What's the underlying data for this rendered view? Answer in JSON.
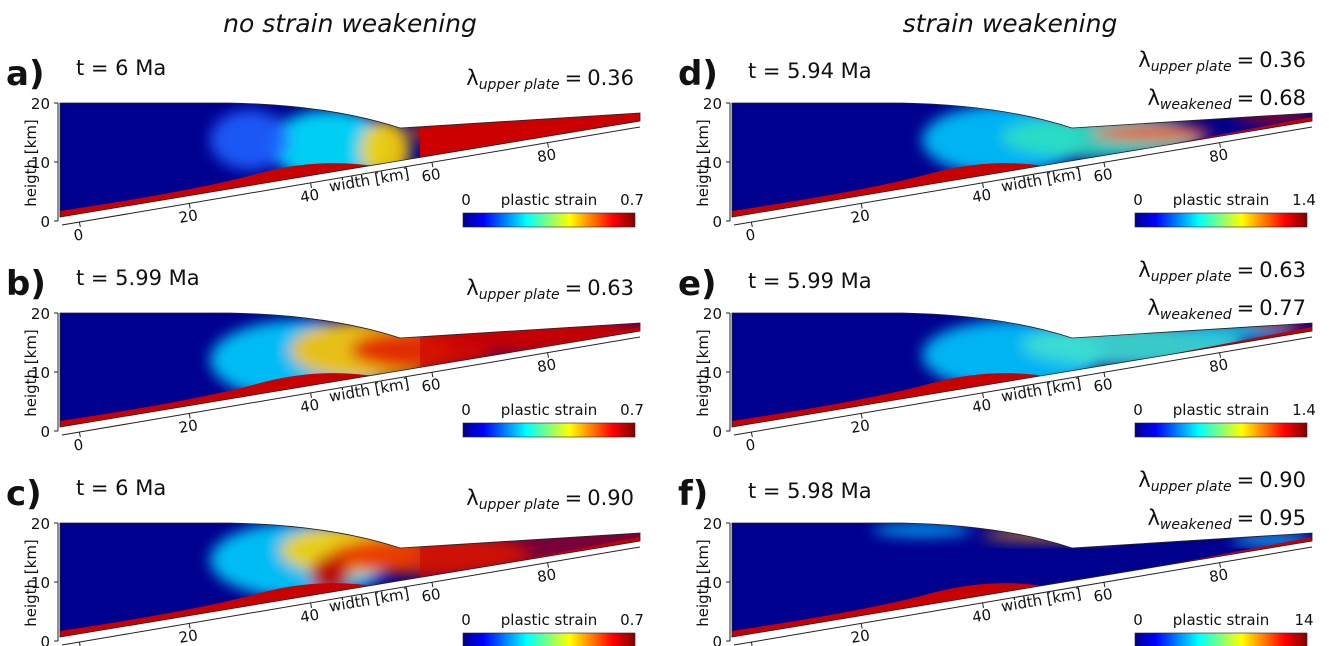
{
  "columns": [
    "no strain weakening",
    "strain weakening"
  ],
  "axis_labels": {
    "y": "heigth [km]",
    "x": "width [km]"
  },
  "yticks": [
    "20",
    "10",
    "0"
  ],
  "xticks": [
    "0",
    "20",
    "40",
    "60",
    "80"
  ],
  "lambda": {
    "symbol": "λ",
    "upper_sub": "upper plate",
    "weakened_sub": "weakened",
    "equals": "="
  },
  "colorbar_label": "plastic strain",
  "panels": [
    {
      "label": "a)",
      "time": "t = 6 Ma",
      "lambda_upper": "0.36",
      "cb_min": "0",
      "cb_max": "0.7"
    },
    {
      "label": "b)",
      "time": "t = 5.99 Ma",
      "lambda_upper": "0.63",
      "cb_min": "0",
      "cb_max": "0.7"
    },
    {
      "label": "c)",
      "time": "t = 6 Ma",
      "lambda_upper": "0.90",
      "cb_min": "0",
      "cb_max": "0.7"
    },
    {
      "label": "d)",
      "time": "t = 5.94 Ma",
      "lambda_upper": "0.36",
      "lambda_weakened": "0.68",
      "cb_min": "0",
      "cb_max": "1.4"
    },
    {
      "label": "e)",
      "time": "t = 5.99 Ma",
      "lambda_upper": "0.63",
      "lambda_weakened": "0.77",
      "cb_min": "0",
      "cb_max": "1.4"
    },
    {
      "label": "f)",
      "time": "t = 5.98 Ma",
      "lambda_upper": "0.90",
      "lambda_weakened": "0.95",
      "cb_min": "0",
      "cb_max": "14"
    }
  ]
}
